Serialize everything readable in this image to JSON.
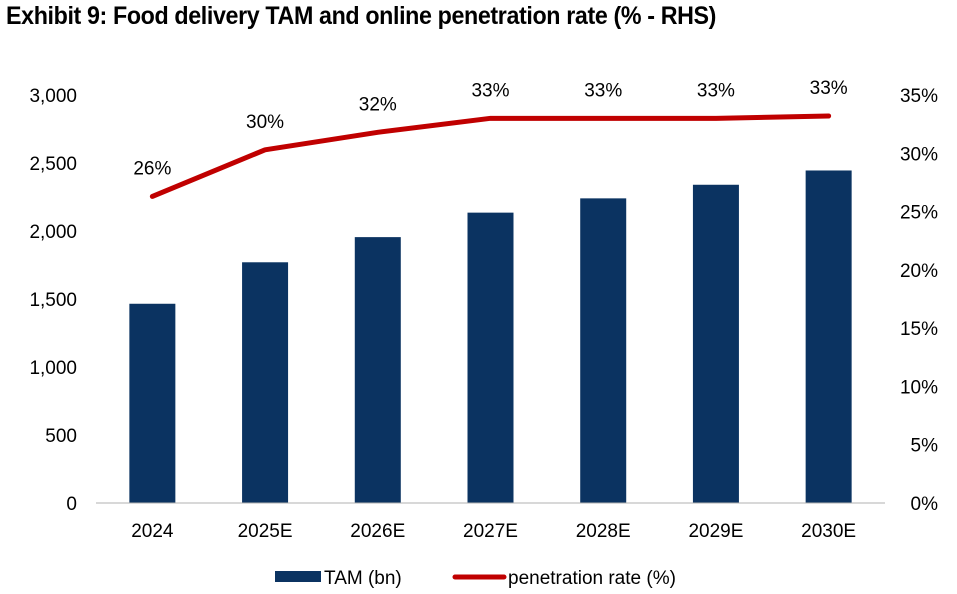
{
  "chart_data": {
    "type": "bar+line",
    "title": "Exhibit 9: Food delivery TAM and online penetration rate (% - RHS)",
    "categories": [
      "2024",
      "2025E",
      "2026E",
      "2027E",
      "2028E",
      "2029E",
      "2030E"
    ],
    "series": [
      {
        "name": "TAM (bn)",
        "type": "bar",
        "axis": "left",
        "color": "#0b3361",
        "values": [
          1465,
          1770,
          1955,
          2135,
          2240,
          2340,
          2445
        ]
      },
      {
        "name": "penetration rate (%)",
        "type": "line",
        "axis": "right",
        "color": "#c00000",
        "values": [
          26.3,
          30.3,
          31.8,
          33.0,
          33.0,
          33.0,
          33.2
        ],
        "data_labels": [
          "26%",
          "30%",
          "32%",
          "33%",
          "33%",
          "33%",
          "33%"
        ]
      }
    ],
    "y_left": {
      "range": [
        0,
        3000
      ],
      "ticks": [
        0,
        500,
        1000,
        1500,
        2000,
        2500,
        3000
      ],
      "tick_labels": [
        "0",
        "500",
        "1,000",
        "1,500",
        "2,000",
        "2,500",
        "3,000"
      ]
    },
    "y_right": {
      "range": [
        0,
        35
      ],
      "ticks": [
        0,
        5,
        10,
        15,
        20,
        25,
        30,
        35
      ],
      "tick_labels": [
        "0%",
        "5%",
        "10%",
        "15%",
        "20%",
        "25%",
        "30%",
        "35%"
      ]
    },
    "grid": false,
    "legend": "bottom"
  }
}
